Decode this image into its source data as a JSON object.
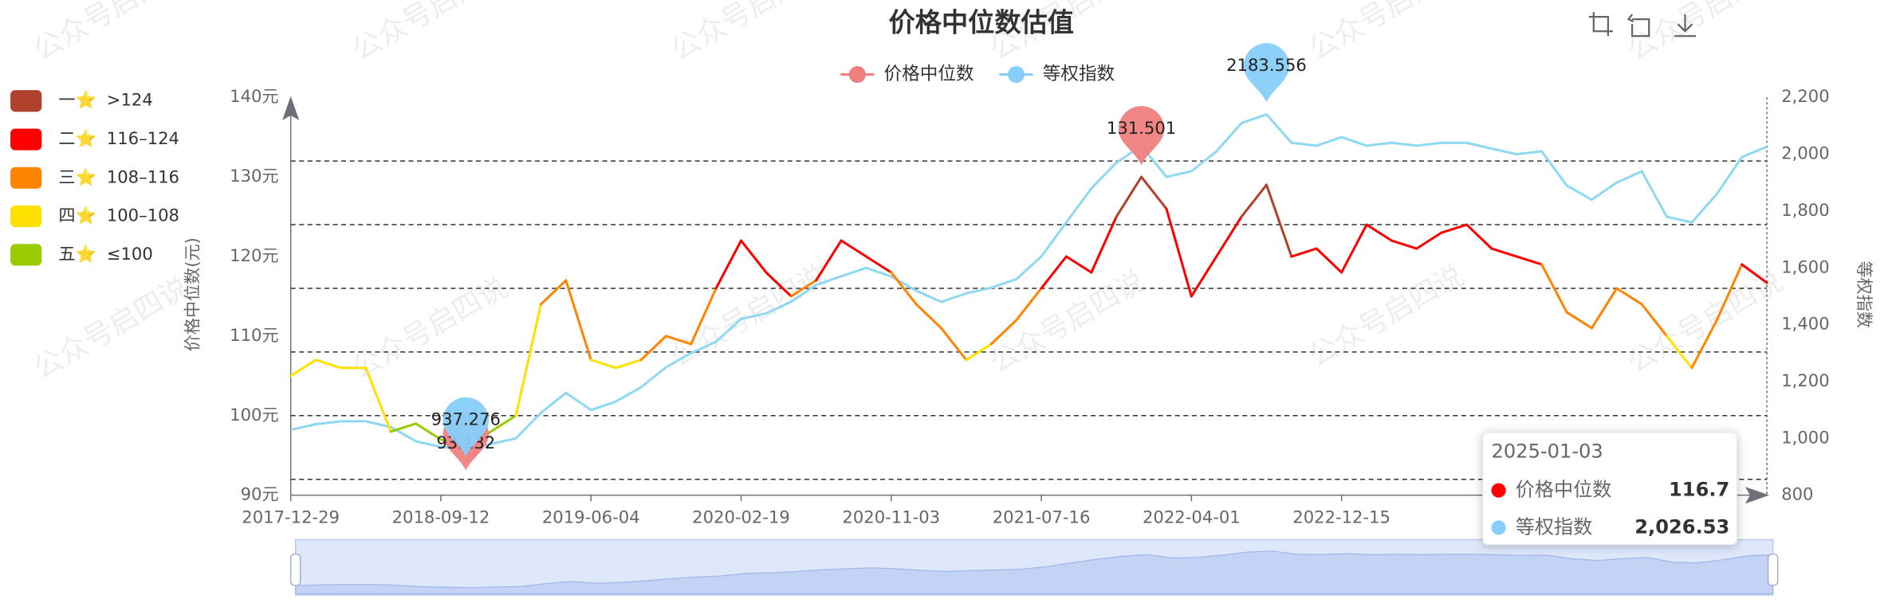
{
  "chart_data": {
    "type": "line",
    "title": "价格中位数估值",
    "watermark": "公众号启四说",
    "x_label": "时间",
    "y_label": "价格中位数(元)",
    "y2_label": "等权指数",
    "categories": [
      "2017-12-29",
      "2018-02-13",
      "2018-03-29",
      "2018-05-14",
      "2018-06-27",
      "2018-08-09",
      "2018-09-12",
      "2018-10-26",
      "2018-12-10",
      "2019-01-23",
      "2019-03-11",
      "2019-04-23",
      "2019-06-04",
      "2019-07-17",
      "2019-08-28",
      "2019-10-16",
      "2019-11-27",
      "2020-01-09",
      "2020-02-19",
      "2020-04-02",
      "2020-05-19",
      "2020-07-01",
      "2020-08-12",
      "2020-09-23",
      "2020-11-03",
      "2020-12-15",
      "2021-01-27",
      "2021-03-16",
      "2021-04-28",
      "2021-06-09",
      "2021-07-16",
      "2021-08-27",
      "2021-10-15",
      "2021-11-25",
      "2022-01-07",
      "2022-02-23",
      "2022-04-01",
      "2022-05-18",
      "2022-06-29",
      "2022-08-10",
      "2022-09-21",
      "2022-11-03",
      "2022-12-15",
      "2023-02-01",
      "2023-03-16",
      "2023-04-27",
      "2023-06-09",
      "2023-07-21",
      "2023-08-31",
      "2023-10-19",
      "2023-12-01",
      "2024-01-12",
      "2024-03-01",
      "2024-04-15",
      "2024-05-28",
      "2024-07-09",
      "2024-08-20",
      "2024-10-08",
      "2024-11-19",
      "2025-01-03"
    ],
    "xticks": [
      "2017-12-29",
      "2018-09-12",
      "2019-06-04",
      "2020-02-19",
      "2020-11-03",
      "2021-07-16",
      "2022-04-01",
      "2022-12-15"
    ],
    "series": [
      {
        "name": "价格中位数",
        "color": "#f08080",
        "axis": "y",
        "values": [
          105,
          107,
          106,
          106,
          98,
          99,
          97,
          96,
          98,
          100,
          114,
          117,
          107,
          106,
          107,
          110,
          109,
          116,
          122,
          118,
          115,
          117,
          122,
          120,
          118,
          114,
          111,
          107,
          109,
          112,
          116,
          120,
          118,
          125,
          130,
          126,
          115,
          120,
          125,
          129,
          120,
          121,
          118,
          124,
          122,
          121,
          123,
          124,
          121,
          120,
          119,
          113,
          111,
          116,
          114,
          110,
          106,
          112,
          119,
          116.7
        ]
      },
      {
        "name": "等权指数",
        "color": "#87cefa",
        "line_color": "#8fd8f2",
        "axis": "y2",
        "values": [
          1030,
          1050,
          1060,
          1060,
          1040,
          990,
          970,
          960,
          980,
          1000,
          1090,
          1160,
          1100,
          1130,
          1180,
          1250,
          1300,
          1340,
          1420,
          1440,
          1480,
          1540,
          1570,
          1600,
          1570,
          1520,
          1480,
          1510,
          1530,
          1560,
          1640,
          1760,
          1880,
          1970,
          2030,
          1920,
          1940,
          2010,
          2110,
          2140,
          2040,
          2030,
          2060,
          2030,
          2040,
          2030,
          2040,
          2040,
          2020,
          2000,
          2010,
          1890,
          1840,
          1900,
          1940,
          1780,
          1760,
          1860,
          1990,
          2026.53
        ]
      }
    ],
    "mark_points": [
      {
        "series": 0,
        "kind": "max",
        "value": 131.501
      },
      {
        "series": 0,
        "kind": "min",
        "value": 93.132
      },
      {
        "series": 1,
        "kind": "max",
        "value": 2183.556
      },
      {
        "series": 1,
        "kind": "min",
        "value": 937.276
      }
    ],
    "pieces": [
      {
        "label": "一⭐",
        "range": ">124",
        "color": "#b0412d",
        "gt": 124
      },
      {
        "label": "二⭐",
        "range": "116–124",
        "color": "#ff0000",
        "gt": 116,
        "lte": 124
      },
      {
        "label": "三⭐",
        "range": "108–116",
        "color": "#ff8500",
        "gt": 108,
        "lte": 116
      },
      {
        "label": "四⭐",
        "range": "100–108",
        "color": "#ffe100",
        "gt": 100,
        "lte": 108
      },
      {
        "label": "五⭐",
        "range": "≤100",
        "color": "#99cc00",
        "lte": 100
      }
    ],
    "thresholds": [
      92,
      100,
      108,
      116,
      124,
      132
    ],
    "ylim": [
      90,
      140
    ],
    "yticks": [
      {
        "value": 90,
        "label": "90元"
      },
      {
        "value": 100,
        "label": "100元"
      },
      {
        "value": 110,
        "label": "110元"
      },
      {
        "value": 120,
        "label": "120元"
      },
      {
        "value": 130,
        "label": "130元"
      },
      {
        "value": 140,
        "label": "140元"
      }
    ],
    "y2lim": [
      800,
      2200
    ],
    "y2ticks": [
      800,
      {
        "value": 1000,
        "label": "1,000"
      },
      {
        "value": 1200,
        "label": "1,200"
      },
      {
        "value": 1400,
        "label": "1,400"
      },
      {
        "value": 1600,
        "label": "1,600"
      },
      {
        "value": 1800,
        "label": "1,800"
      },
      {
        "value": 2000,
        "label": "2,000"
      },
      {
        "value": 2200,
        "label": "2,200"
      }
    ],
    "tooltip": {
      "date": "2025-01-03",
      "items": [
        {
          "series": 0,
          "color": "#ff0000",
          "value": 116.7
        },
        {
          "series": 1,
          "color": "#87cefa",
          "value": 2026.53,
          "value_label": "2,026.53"
        }
      ]
    }
  }
}
